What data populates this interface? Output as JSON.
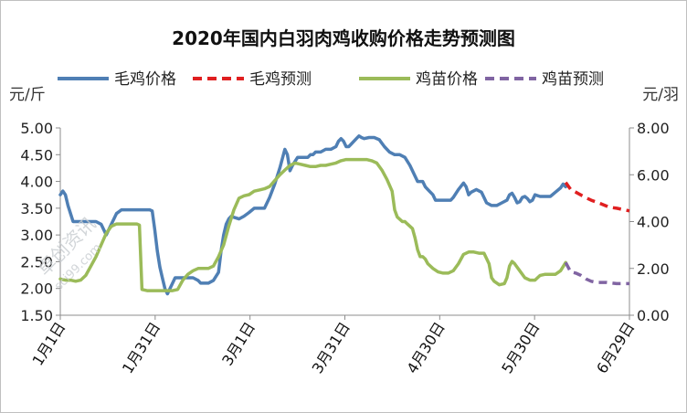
{
  "chart_data": {
    "type": "line",
    "title": "2020年国内白羽肉鸡收购价格走势预测图",
    "legend_position": "top",
    "grid": false,
    "y_left": {
      "unit_label": "元/斤",
      "lim": [
        1.5,
        5.0
      ],
      "ticks": [
        "5.00",
        "4.50",
        "4.00",
        "3.50",
        "3.00",
        "2.50",
        "2.00",
        "1.50"
      ]
    },
    "y_right": {
      "unit_label": "元/羽",
      "lim": [
        0.0,
        8.0
      ],
      "ticks": [
        "8.00",
        "6.00",
        "4.00",
        "2.00",
        "0.00"
      ]
    },
    "x_ticks": [
      "1月1日",
      "1月31日",
      "3月1日",
      "3月31日",
      "4月30日",
      "5月30日",
      "6月29日"
    ],
    "series": [
      {
        "name": "毛鸡价格",
        "axis": "left",
        "color": "#4f7fb4",
        "dash": false,
        "points": [
          [
            0,
            3.75
          ],
          [
            1,
            3.82
          ],
          [
            2,
            3.75
          ],
          [
            3,
            3.55
          ],
          [
            4,
            3.4
          ],
          [
            5,
            3.25
          ],
          [
            8,
            3.25
          ],
          [
            12,
            3.25
          ],
          [
            14,
            3.25
          ],
          [
            16,
            3.2
          ],
          [
            18,
            3.0
          ],
          [
            20,
            3.2
          ],
          [
            22,
            3.4
          ],
          [
            24,
            3.47
          ],
          [
            28,
            3.47
          ],
          [
            32,
            3.47
          ],
          [
            35,
            3.47
          ],
          [
            36,
            3.45
          ],
          [
            37,
            3.1
          ],
          [
            38,
            2.7
          ],
          [
            39,
            2.4
          ],
          [
            40,
            2.2
          ],
          [
            41,
            2.0
          ],
          [
            42,
            1.9
          ],
          [
            43,
            2.0
          ],
          [
            44,
            2.1
          ],
          [
            45,
            2.2
          ],
          [
            48,
            2.2
          ],
          [
            50,
            2.2
          ],
          [
            52,
            2.2
          ],
          [
            54,
            2.15
          ],
          [
            55,
            2.1
          ],
          [
            58,
            2.1
          ],
          [
            60,
            2.15
          ],
          [
            62,
            2.3
          ],
          [
            63,
            2.7
          ],
          [
            64,
            3.0
          ],
          [
            65,
            3.2
          ],
          [
            66,
            3.3
          ],
          [
            67,
            3.35
          ],
          [
            68,
            3.33
          ],
          [
            70,
            3.3
          ],
          [
            72,
            3.35
          ],
          [
            74,
            3.42
          ],
          [
            76,
            3.5
          ],
          [
            78,
            3.5
          ],
          [
            80,
            3.5
          ],
          [
            82,
            3.7
          ],
          [
            84,
            3.95
          ],
          [
            86,
            4.25
          ],
          [
            88,
            4.6
          ],
          [
            89,
            4.5
          ],
          [
            90,
            4.2
          ],
          [
            91,
            4.3
          ],
          [
            93,
            4.45
          ],
          [
            95,
            4.45
          ],
          [
            97,
            4.45
          ],
          [
            98,
            4.5
          ],
          [
            99,
            4.5
          ],
          [
            100,
            4.55
          ],
          [
            102,
            4.55
          ],
          [
            104,
            4.6
          ],
          [
            106,
            4.6
          ],
          [
            108,
            4.65
          ],
          [
            109,
            4.75
          ],
          [
            110,
            4.8
          ],
          [
            111,
            4.75
          ],
          [
            112,
            4.65
          ],
          [
            113,
            4.65
          ],
          [
            114,
            4.7
          ],
          [
            116,
            4.8
          ],
          [
            117,
            4.85
          ],
          [
            118,
            4.82
          ],
          [
            119,
            4.8
          ],
          [
            121,
            4.82
          ],
          [
            123,
            4.82
          ],
          [
            125,
            4.78
          ],
          [
            127,
            4.65
          ],
          [
            129,
            4.55
          ],
          [
            131,
            4.5
          ],
          [
            133,
            4.5
          ],
          [
            135,
            4.45
          ],
          [
            137,
            4.3
          ],
          [
            139,
            4.1
          ],
          [
            140,
            4.0
          ],
          [
            142,
            4.0
          ],
          [
            143,
            3.9
          ],
          [
            144,
            3.85
          ],
          [
            145,
            3.8
          ],
          [
            146,
            3.75
          ],
          [
            147,
            3.65
          ],
          [
            149,
            3.65
          ],
          [
            151,
            3.65
          ],
          [
            153,
            3.65
          ],
          [
            154,
            3.7
          ],
          [
            156,
            3.85
          ],
          [
            158,
            3.97
          ],
          [
            159,
            3.9
          ],
          [
            160,
            3.75
          ],
          [
            161,
            3.8
          ],
          [
            163,
            3.85
          ],
          [
            165,
            3.8
          ],
          [
            166,
            3.7
          ],
          [
            167,
            3.6
          ],
          [
            169,
            3.55
          ],
          [
            171,
            3.55
          ],
          [
            173,
            3.6
          ],
          [
            175,
            3.65
          ],
          [
            176,
            3.75
          ],
          [
            177,
            3.78
          ],
          [
            178,
            3.7
          ],
          [
            179,
            3.6
          ],
          [
            180,
            3.62
          ],
          [
            181,
            3.7
          ],
          [
            182,
            3.72
          ],
          [
            183,
            3.68
          ],
          [
            184,
            3.62
          ],
          [
            185,
            3.65
          ],
          [
            186,
            3.75
          ],
          [
            188,
            3.72
          ],
          [
            190,
            3.72
          ],
          [
            192,
            3.72
          ],
          [
            194,
            3.8
          ],
          [
            196,
            3.88
          ],
          [
            197,
            3.95
          ],
          [
            198,
            3.9
          ]
        ]
      },
      {
        "name": "毛鸡预测",
        "axis": "left",
        "color": "#e01f20",
        "dash": true,
        "points": [
          [
            198,
            3.98
          ],
          [
            200,
            3.85
          ],
          [
            202,
            3.8
          ],
          [
            205,
            3.72
          ],
          [
            208,
            3.65
          ],
          [
            212,
            3.58
          ],
          [
            215,
            3.52
          ],
          [
            218,
            3.5
          ],
          [
            221,
            3.47
          ],
          [
            223,
            3.45
          ]
        ]
      },
      {
        "name": "鸡苗价格",
        "axis": "right",
        "color": "#9bbb59",
        "dash": false,
        "points": [
          [
            0,
            1.55
          ],
          [
            2,
            1.5
          ],
          [
            4,
            1.5
          ],
          [
            6,
            1.45
          ],
          [
            8,
            1.5
          ],
          [
            10,
            1.7
          ],
          [
            12,
            2.1
          ],
          [
            14,
            2.5
          ],
          [
            16,
            3.0
          ],
          [
            18,
            3.5
          ],
          [
            20,
            3.8
          ],
          [
            22,
            3.9
          ],
          [
            24,
            3.9
          ],
          [
            26,
            3.9
          ],
          [
            28,
            3.9
          ],
          [
            30,
            3.9
          ],
          [
            31,
            3.85
          ],
          [
            32,
            1.1
          ],
          [
            34,
            1.05
          ],
          [
            36,
            1.05
          ],
          [
            38,
            1.05
          ],
          [
            40,
            1.05
          ],
          [
            42,
            1.05
          ],
          [
            44,
            1.05
          ],
          [
            46,
            1.1
          ],
          [
            48,
            1.5
          ],
          [
            50,
            1.75
          ],
          [
            52,
            1.9
          ],
          [
            54,
            2.0
          ],
          [
            56,
            2.0
          ],
          [
            58,
            2.0
          ],
          [
            60,
            2.1
          ],
          [
            62,
            2.5
          ],
          [
            64,
            3.0
          ],
          [
            66,
            3.8
          ],
          [
            68,
            4.5
          ],
          [
            70,
            5.0
          ],
          [
            72,
            5.1
          ],
          [
            74,
            5.15
          ],
          [
            76,
            5.3
          ],
          [
            78,
            5.35
          ],
          [
            80,
            5.4
          ],
          [
            82,
            5.5
          ],
          [
            84,
            5.75
          ],
          [
            86,
            6.0
          ],
          [
            88,
            6.2
          ],
          [
            90,
            6.4
          ],
          [
            92,
            6.5
          ],
          [
            94,
            6.45
          ],
          [
            96,
            6.4
          ],
          [
            98,
            6.35
          ],
          [
            100,
            6.35
          ],
          [
            102,
            6.4
          ],
          [
            104,
            6.4
          ],
          [
            106,
            6.45
          ],
          [
            108,
            6.5
          ],
          [
            110,
            6.6
          ],
          [
            112,
            6.65
          ],
          [
            114,
            6.65
          ],
          [
            116,
            6.65
          ],
          [
            118,
            6.65
          ],
          [
            120,
            6.65
          ],
          [
            122,
            6.6
          ],
          [
            124,
            6.5
          ],
          [
            126,
            6.2
          ],
          [
            128,
            5.8
          ],
          [
            130,
            5.3
          ],
          [
            131,
            4.5
          ],
          [
            132,
            4.2
          ],
          [
            134,
            4.0
          ],
          [
            135,
            4.0
          ],
          [
            136,
            3.9
          ],
          [
            138,
            3.7
          ],
          [
            139,
            3.3
          ],
          [
            140,
            2.8
          ],
          [
            141,
            2.5
          ],
          [
            142,
            2.5
          ],
          [
            143,
            2.4
          ],
          [
            144,
            2.2
          ],
          [
            146,
            2.0
          ],
          [
            148,
            1.85
          ],
          [
            150,
            1.8
          ],
          [
            152,
            1.8
          ],
          [
            154,
            1.9
          ],
          [
            156,
            2.2
          ],
          [
            158,
            2.6
          ],
          [
            160,
            2.7
          ],
          [
            162,
            2.7
          ],
          [
            164,
            2.65
          ],
          [
            166,
            2.65
          ],
          [
            168,
            2.2
          ],
          [
            169,
            1.6
          ],
          [
            170,
            1.45
          ],
          [
            172,
            1.3
          ],
          [
            174,
            1.35
          ],
          [
            175,
            1.6
          ],
          [
            176,
            2.1
          ],
          [
            177,
            2.3
          ],
          [
            178,
            2.2
          ],
          [
            180,
            1.9
          ],
          [
            182,
            1.6
          ],
          [
            184,
            1.5
          ],
          [
            186,
            1.5
          ],
          [
            188,
            1.7
          ],
          [
            190,
            1.75
          ],
          [
            192,
            1.75
          ],
          [
            194,
            1.75
          ],
          [
            196,
            1.9
          ],
          [
            198,
            2.25
          ]
        ]
      },
      {
        "name": "鸡苗预测",
        "axis": "right",
        "color": "#8064a2",
        "dash": true,
        "points": [
          [
            198,
            2.25
          ],
          [
            200,
            1.85
          ],
          [
            202,
            1.8
          ],
          [
            204,
            1.7
          ],
          [
            206,
            1.55
          ],
          [
            208,
            1.45
          ],
          [
            210,
            1.4
          ],
          [
            214,
            1.4
          ],
          [
            218,
            1.35
          ],
          [
            223,
            1.35
          ]
        ]
      }
    ]
  },
  "watermark": {
    "text": "卓创资讯",
    "subtext": "sci99.com"
  }
}
